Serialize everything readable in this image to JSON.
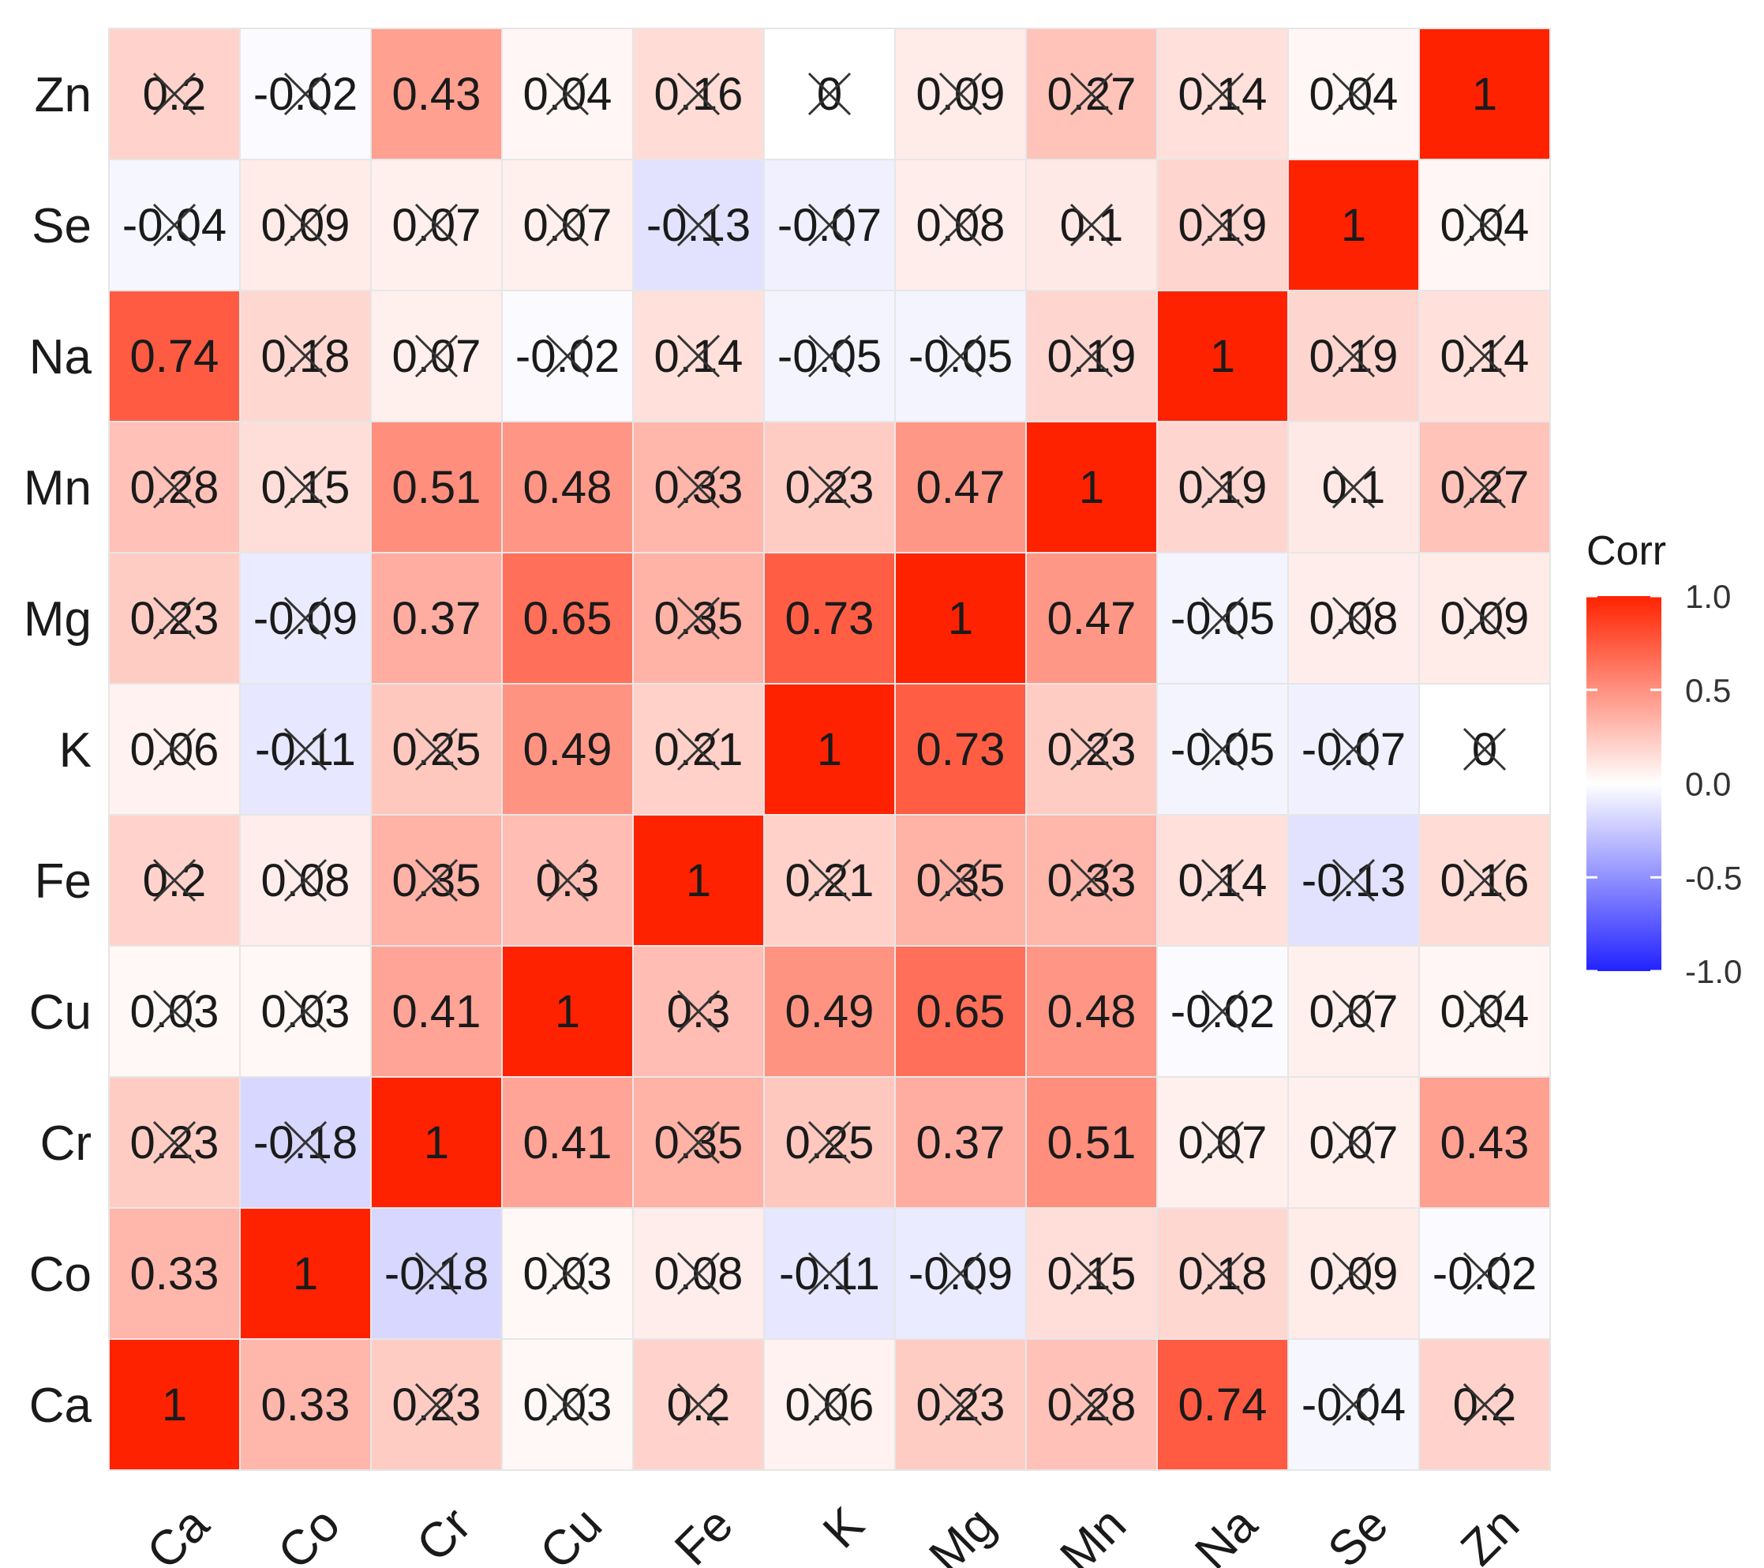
{
  "chart_data": {
    "type": "heatmap",
    "variables": [
      "Ca",
      "Co",
      "Cr",
      "Cu",
      "Fe",
      "K",
      "Mg",
      "Mn",
      "Na",
      "Se",
      "Zn"
    ],
    "x_order": [
      "Ca",
      "Co",
      "Cr",
      "Cu",
      "Fe",
      "K",
      "Mg",
      "Mn",
      "Na",
      "Se",
      "Zn"
    ],
    "y_order_bottom_to_top": [
      "Ca",
      "Co",
      "Cr",
      "Cu",
      "Fe",
      "K",
      "Mg",
      "Mn",
      "Na",
      "Se",
      "Zn"
    ],
    "matrix": [
      [
        1,
        0.33,
        0.23,
        0.03,
        0.2,
        0.06,
        0.23,
        0.28,
        0.74,
        -0.04,
        0.2
      ],
      [
        0.33,
        1,
        -0.18,
        0.03,
        0.08,
        -0.11,
        -0.09,
        0.15,
        0.18,
        0.09,
        -0.02
      ],
      [
        0.23,
        -0.18,
        1,
        0.41,
        0.35,
        0.25,
        0.37,
        0.51,
        0.07,
        0.07,
        0.43
      ],
      [
        0.03,
        0.03,
        0.41,
        1,
        0.3,
        0.49,
        0.65,
        0.48,
        -0.02,
        0.07,
        0.04
      ],
      [
        0.2,
        0.08,
        0.35,
        0.3,
        1,
        0.21,
        0.35,
        0.33,
        0.14,
        -0.13,
        0.16
      ],
      [
        0.06,
        -0.11,
        0.25,
        0.49,
        0.21,
        1,
        0.73,
        0.23,
        -0.05,
        -0.07,
        0
      ],
      [
        0.23,
        -0.09,
        0.37,
        0.65,
        0.35,
        0.73,
        1,
        0.47,
        -0.05,
        0.08,
        0.09
      ],
      [
        0.28,
        0.15,
        0.51,
        0.48,
        0.33,
        0.23,
        0.47,
        1,
        0.19,
        0.1,
        0.27
      ],
      [
        0.74,
        0.18,
        0.07,
        -0.02,
        0.14,
        -0.05,
        -0.05,
        0.19,
        1,
        0.19,
        0.14
      ],
      [
        -0.04,
        0.09,
        0.07,
        0.07,
        -0.13,
        -0.07,
        0.08,
        0.1,
        0.19,
        1,
        0.04
      ],
      [
        0.2,
        -0.02,
        0.43,
        0.04,
        0.16,
        0,
        0.09,
        0.27,
        0.14,
        0.04,
        1
      ]
    ],
    "labels": [
      [
        "1",
        "0.33",
        "0.23",
        "0.03",
        "0.2",
        "0.06",
        "0.23",
        "0.28",
        "0.74",
        "-0.04",
        "0.2"
      ],
      [
        "0.33",
        "1",
        "-0.18",
        "0.03",
        "0.08",
        "-0.11",
        "-0.09",
        "0.15",
        "0.18",
        "0.09",
        "-0.02"
      ],
      [
        "0.23",
        "-0.18",
        "1",
        "0.41",
        "0.35",
        "0.25",
        "0.37",
        "0.51",
        "0.07",
        "0.07",
        "0.43"
      ],
      [
        "0.03",
        "0.03",
        "0.41",
        "1",
        "0.3",
        "0.49",
        "0.65",
        "0.48",
        "-0.02",
        "0.07",
        "0.04"
      ],
      [
        "0.2",
        "0.08",
        "0.35",
        "0.3",
        "1",
        "0.21",
        "0.35",
        "0.33",
        "0.14",
        "-0.13",
        "0.16"
      ],
      [
        "0.06",
        "-0.11",
        "0.25",
        "0.49",
        "0.21",
        "1",
        "0.73",
        "0.23",
        "-0.05",
        "-0.07",
        "0"
      ],
      [
        "0.23",
        "-0.09",
        "0.37",
        "0.65",
        "0.35",
        "0.73",
        "1",
        "0.47",
        "-0.05",
        "0.08",
        "0.09"
      ],
      [
        "0.28",
        "0.15",
        "0.51",
        "0.48",
        "0.33",
        "0.23",
        "0.47",
        "1",
        "0.19",
        "0.1",
        "0.27"
      ],
      [
        "0.74",
        "0.18",
        "0.07",
        "-0.02",
        "0.14",
        "-0.05",
        "-0.05",
        "0.19",
        "1",
        "0.19",
        "0.14"
      ],
      [
        "-0.04",
        "0.09",
        "0.07",
        "0.07",
        "-0.13",
        "-0.07",
        "0.08",
        "0.1",
        "0.19",
        "1",
        "0.04"
      ],
      [
        "0.2",
        "-0.02",
        "0.43",
        "0.04",
        "0.16",
        "0",
        "0.09",
        "0.27",
        "0.14",
        "0.04",
        "1"
      ]
    ],
    "insignificant_marker": "X",
    "insignificant": [
      [
        false,
        false,
        true,
        true,
        true,
        true,
        true,
        true,
        false,
        true,
        true
      ],
      [
        false,
        false,
        true,
        true,
        true,
        true,
        true,
        true,
        true,
        true,
        true
      ],
      [
        true,
        true,
        false,
        false,
        true,
        true,
        false,
        false,
        true,
        true,
        false
      ],
      [
        true,
        true,
        false,
        false,
        true,
        false,
        false,
        false,
        true,
        true,
        true
      ],
      [
        true,
        true,
        true,
        true,
        false,
        true,
        true,
        true,
        true,
        true,
        true
      ],
      [
        true,
        true,
        true,
        false,
        true,
        false,
        false,
        true,
        true,
        true,
        true
      ],
      [
        true,
        true,
        false,
        false,
        true,
        false,
        false,
        false,
        true,
        true,
        true
      ],
      [
        true,
        true,
        false,
        false,
        true,
        true,
        false,
        false,
        true,
        true,
        true
      ],
      [
        false,
        true,
        true,
        true,
        true,
        true,
        true,
        true,
        false,
        true,
        true
      ],
      [
        true,
        true,
        true,
        true,
        true,
        true,
        true,
        true,
        true,
        false,
        true
      ],
      [
        true,
        true,
        false,
        true,
        true,
        true,
        true,
        true,
        true,
        true,
        false
      ]
    ],
    "legend": {
      "title": "Corr",
      "ticks": [
        "1.0",
        "0.5",
        "0.0",
        "-0.5",
        "-1.0"
      ],
      "tick_values": [
        1.0,
        0.5,
        0.0,
        -0.5,
        -1.0
      ],
      "placement": "right"
    },
    "value_range": [
      -1,
      1
    ],
    "colors": {
      "low": "#2222ff",
      "mid": "#ffffff",
      "high": "#ff2200"
    },
    "grid": false
  }
}
